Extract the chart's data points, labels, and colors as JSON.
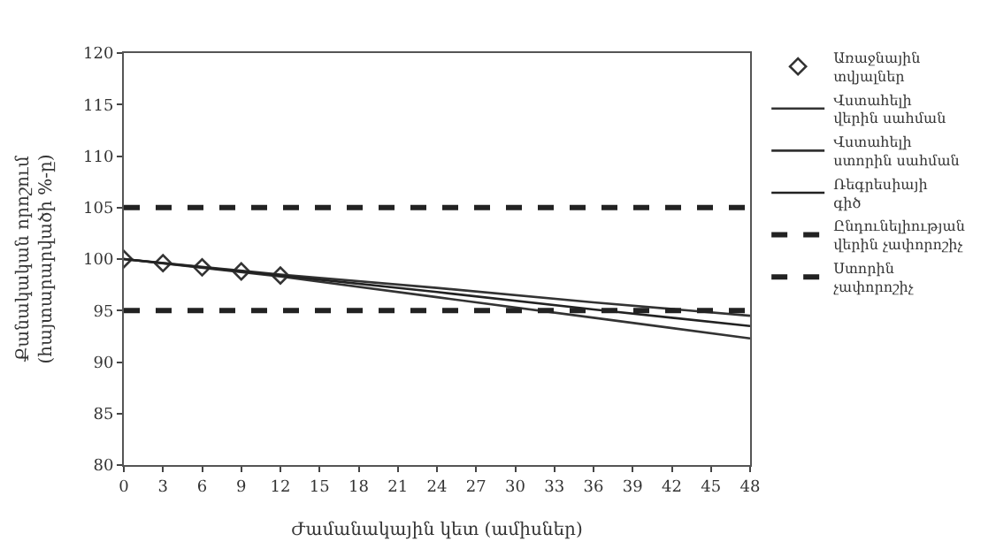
{
  "chart_data": {
    "type": "line",
    "xlabel": "Ժամանակային կետ (ամիսներ)",
    "ylabel": "Քանակական որոշում (հայտարարվածի %-ը)",
    "xlim": [
      0,
      48
    ],
    "xticks": [
      0,
      3,
      6,
      9,
      12,
      15,
      18,
      21,
      24,
      27,
      30,
      33,
      36,
      39,
      42,
      45,
      48
    ],
    "ylim": [
      80,
      120
    ],
    "yticks": [
      80,
      85,
      90,
      95,
      100,
      105,
      110,
      115,
      120
    ],
    "legend": "right",
    "series": [
      {
        "name": "Առաջնային տվյալներ",
        "type": "scatter",
        "marker": "diamond",
        "color": "#333333",
        "x": [
          0,
          3,
          6,
          9,
          12
        ],
        "values": [
          100,
          99.6,
          99.2,
          98.8,
          98.4
        ]
      },
      {
        "name": "Վստահելի վերին սահման",
        "color": "#333333",
        "x": [
          0,
          12,
          24,
          36,
          48
        ],
        "values": [
          100,
          98.5,
          97.2,
          95.8,
          94.5
        ]
      },
      {
        "name": "Վստահելի ստորին սահման",
        "color": "#333333",
        "x": [
          0,
          12,
          24,
          36,
          48
        ],
        "values": [
          100,
          98.3,
          96.3,
          94.3,
          92.3
        ]
      },
      {
        "name": "Ռեգրեսիայի գիծ",
        "color": "#222222",
        "x": [
          0,
          12,
          24,
          36,
          48
        ],
        "values": [
          100,
          98.4,
          96.8,
          95.1,
          93.5
        ]
      }
    ],
    "ref_lines": [
      {
        "axis": "y",
        "value": 105,
        "label": "Ընդունելիության վերին չափորոշիչ",
        "color": "#222222",
        "line_style": "dashed"
      },
      {
        "axis": "y",
        "value": 95,
        "label": "Ստորին չափորոշիչ",
        "color": "#222222",
        "line_style": "dashed"
      }
    ]
  }
}
